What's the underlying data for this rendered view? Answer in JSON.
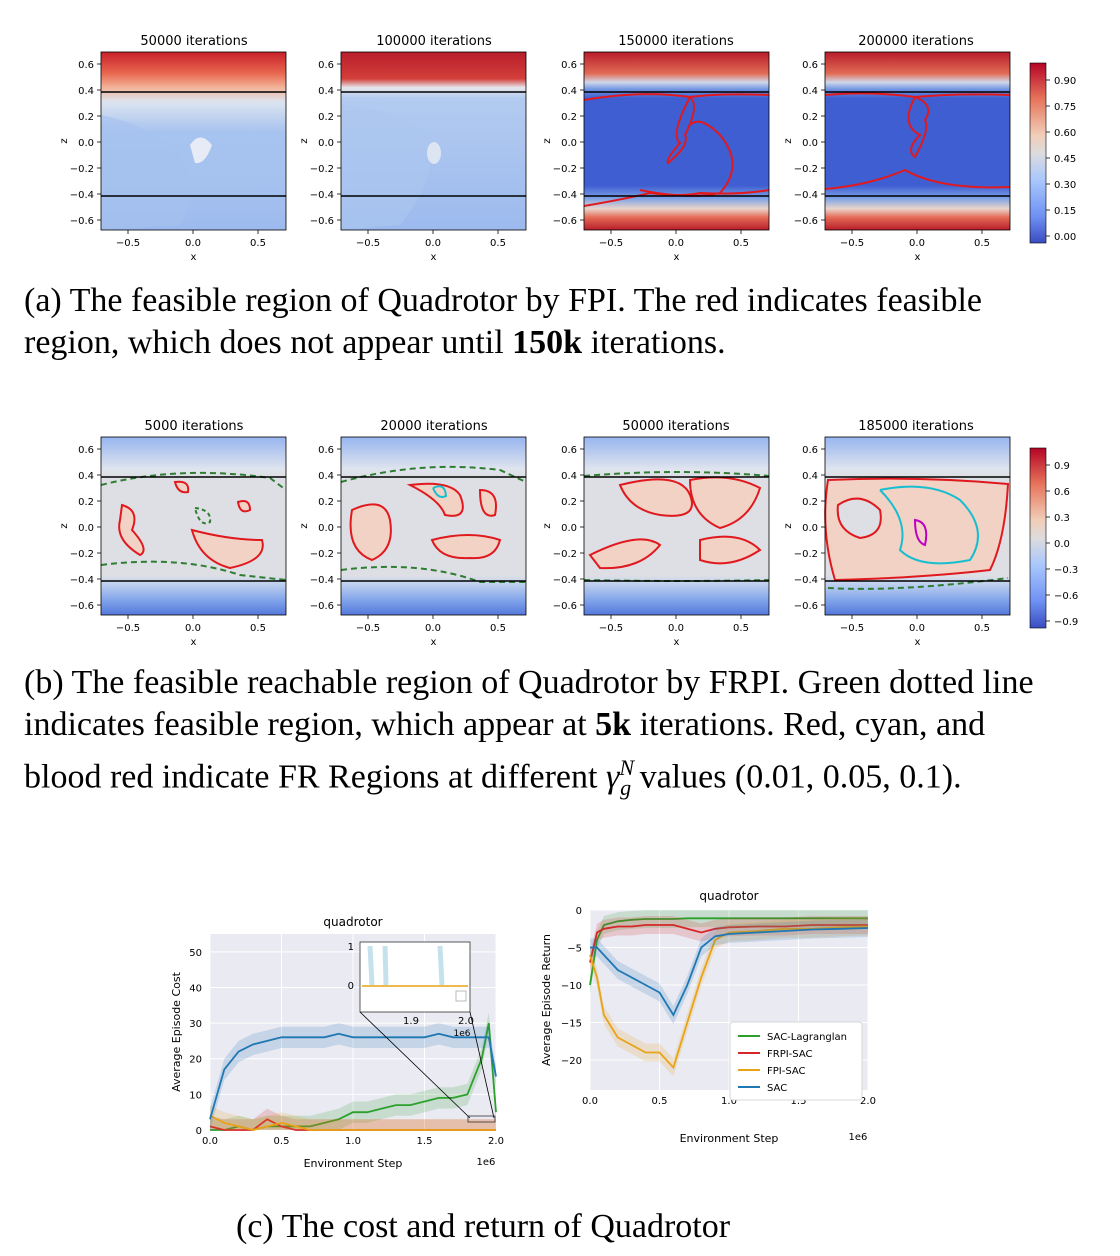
{
  "figure_a": {
    "panel_titles": [
      "50000 iterations",
      "100000 iterations",
      "150000 iterations",
      "200000 iterations"
    ],
    "x_ticks": [
      "−0.5",
      "0.0",
      "0.5"
    ],
    "y_ticks": [
      "0.6",
      "0.4",
      "0.2",
      "0.0",
      "−0.2",
      "−0.4",
      "−0.6"
    ],
    "xlabel": "x",
    "ylabel": "z",
    "colorbar_ticks": [
      "0.90",
      "0.75",
      "0.60",
      "0.45",
      "0.30",
      "0.15",
      "0.00"
    ]
  },
  "caption_a": {
    "label": "(a) The feasible region of Quadrotor by FPI. The red indicates feasible region, which does not appear until ",
    "bold": "150k",
    "tail": " iterations."
  },
  "figure_b": {
    "panel_titles": [
      "5000 iterations",
      "20000 iterations",
      "50000 iterations",
      "185000 iterations"
    ],
    "x_ticks": [
      "−0.5",
      "0.0",
      "0.5"
    ],
    "y_ticks": [
      "0.6",
      "0.4",
      "0.2",
      "0.0",
      "−0.2",
      "−0.4",
      "−0.6"
    ],
    "xlabel": "x",
    "ylabel": "z",
    "colorbar_ticks": [
      "0.9",
      "0.6",
      "0.3",
      "0.0",
      "−0.3",
      "−0.6",
      "−0.9"
    ]
  },
  "caption_b": {
    "part1": "(b) The feasible reachable region of Quadrotor by FRPI. Green dotted line indicates feasible region, which appear at ",
    "bold": "5k",
    "part2": " iterations. Red, cyan, and blood red indicate FR Regions at different ",
    "gamma": "γ",
    "gamma_sup": "N",
    "gamma_sub": "g",
    "part3": " values ",
    "values": "(0.01, 0.05, 0.1)."
  },
  "cost_chart": {
    "title": "quadrotor",
    "ylabel": "Average Episode Cost",
    "xlabel": "Environment Step",
    "x_ticks": [
      "0.0",
      "0.5",
      "1.0",
      "1.5",
      "2.0"
    ],
    "x_multiplier": "1e6",
    "y_ticks": [
      "0",
      "10",
      "20",
      "30",
      "40",
      "50"
    ],
    "inset": {
      "y_ticks": [
        "1",
        "0"
      ],
      "x_ticks": [
        "1.9",
        "2.0"
      ],
      "x_multiplier": "1e6"
    }
  },
  "return_chart": {
    "title": "quadrotor",
    "ylabel": "Average Episode Return",
    "xlabel": "Environment Step",
    "x_ticks": [
      "0.0",
      "0.5",
      "1.0",
      "1.5",
      "2.0"
    ],
    "x_multiplier": "1e6",
    "y_ticks": [
      "0",
      "−5",
      "−10",
      "−15",
      "−20"
    ],
    "legend": [
      "SAC-Lagranglan",
      "FRPI-SAC",
      "FPI-SAC",
      "SAC"
    ]
  },
  "colors": {
    "sac_lagrangian": "#2ca02c",
    "frpi_sac": "#d62728",
    "fpi_sac": "#e8a317",
    "sac": "#1f77b4",
    "feasible_green": "#2f7d32",
    "cyan": "#17becf",
    "magenta": "#c000c0"
  },
  "chart_data": [
    {
      "type": "line",
      "title": "quadrotor",
      "xlabel": "Environment Step",
      "ylabel": "Average Episode Cost",
      "xlim": [
        0,
        2000000
      ],
      "ylim": [
        0,
        55
      ],
      "x": [
        0,
        100000,
        200000,
        300000,
        400000,
        500000,
        600000,
        700000,
        800000,
        900000,
        1000000,
        1100000,
        1200000,
        1300000,
        1400000,
        1500000,
        1600000,
        1700000,
        1800000,
        1900000,
        1950000,
        2000000
      ],
      "series": [
        {
          "name": "SAC-Lagranglan",
          "values": [
            0,
            0,
            1,
            0,
            1,
            1,
            1,
            1,
            2,
            3,
            5,
            5,
            6,
            7,
            7,
            8,
            9,
            9,
            10,
            20,
            30,
            5
          ]
        },
        {
          "name": "FRPI-SAC",
          "values": [
            1,
            0,
            0,
            0,
            3,
            1,
            0,
            0,
            0,
            0,
            0,
            0,
            0,
            0,
            0,
            0,
            0,
            0,
            0,
            0,
            0,
            0
          ]
        },
        {
          "name": "FPI-SAC",
          "values": [
            4,
            2,
            1,
            0,
            1,
            2,
            1,
            0,
            0,
            0,
            0,
            0,
            0,
            0,
            0,
            0,
            0,
            0,
            0,
            0,
            0,
            0
          ]
        },
        {
          "name": "SAC",
          "values": [
            3,
            17,
            22,
            24,
            25,
            26,
            26,
            26,
            26,
            27,
            26,
            26,
            26,
            26,
            26,
            26,
            27,
            26,
            26,
            26,
            26,
            15
          ]
        }
      ]
    },
    {
      "type": "line",
      "title": "quadrotor",
      "xlabel": "Environment Step",
      "ylabel": "Average Episode Return",
      "xlim": [
        0,
        2000000
      ],
      "ylim": [
        -24,
        0
      ],
      "x": [
        0,
        50000,
        100000,
        200000,
        300000,
        400000,
        500000,
        600000,
        700000,
        800000,
        900000,
        1000000,
        1200000,
        1400000,
        1600000,
        1800000,
        2000000
      ],
      "series": [
        {
          "name": "SAC-Lagranglan",
          "values": [
            -10,
            -4,
            -2,
            -1.5,
            -1.3,
            -1.2,
            -1.2,
            -1.2,
            -1.1,
            -1.1,
            -1.1,
            -1.1,
            -1.1,
            -1.1,
            -1.1,
            -1.1,
            -1.1
          ]
        },
        {
          "name": "FRPI-SAC",
          "values": [
            -7,
            -3,
            -2.5,
            -2.2,
            -2.2,
            -2.0,
            -2.0,
            -2.0,
            -2.5,
            -3.0,
            -2.5,
            -2.3,
            -2.2,
            -2.2,
            -2.0,
            -2.0,
            -2.0
          ]
        },
        {
          "name": "FPI-SAC",
          "values": [
            -6,
            -9,
            -14,
            -17,
            -18,
            -19,
            -19,
            -21,
            -15,
            -9,
            -4,
            -3,
            -2.8,
            -2.5,
            -2.5,
            -2.3,
            -2.2
          ]
        },
        {
          "name": "SAC",
          "values": [
            -5,
            -5,
            -6,
            -8,
            -9,
            -10,
            -11,
            -14,
            -10,
            -5,
            -3.5,
            -3.2,
            -3.0,
            -2.8,
            -2.6,
            -2.5,
            -2.4
          ]
        }
      ]
    }
  ]
}
